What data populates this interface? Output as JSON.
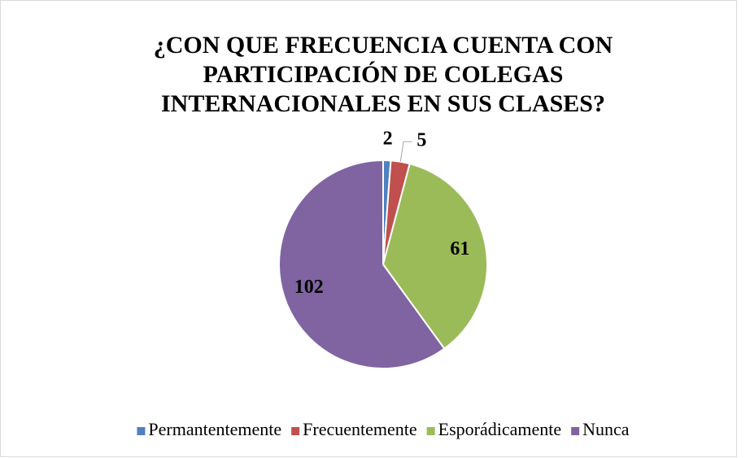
{
  "chart_data": {
    "type": "pie",
    "title": [
      "¿CON QUE FRECUENCIA CUENTA CON",
      "PARTICIPACIÓN DE COLEGAS",
      "INTERNACIONALES EN SUS CLASES?"
    ],
    "categories": [
      "Permantentemente",
      "Frecuentemente",
      "Esporádicamente",
      "Nunca"
    ],
    "values": [
      2,
      5,
      61,
      102
    ],
    "colors": [
      "#4f81bd",
      "#c0504d",
      "#9bbb59",
      "#8064a2"
    ],
    "legend": "bottom"
  }
}
